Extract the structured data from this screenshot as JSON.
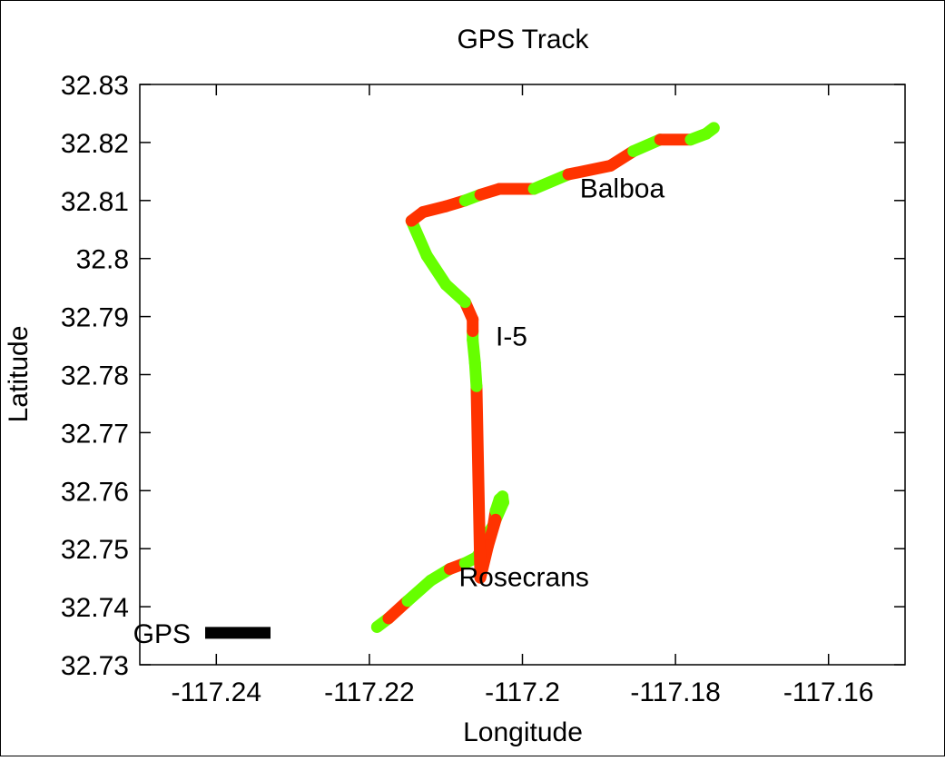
{
  "chart_data": {
    "type": "line",
    "title": "GPS Track",
    "xlabel": "Longitude",
    "ylabel": "Latitude",
    "xlim": [
      -117.25,
      -117.15
    ],
    "ylim": [
      32.73,
      32.83
    ],
    "xticks": [
      -117.24,
      -117.22,
      -117.2,
      -117.18,
      -117.16
    ],
    "xtick_labels": [
      "-117.24",
      "-117.22",
      "-117.2",
      "-117.18",
      "-117.16"
    ],
    "yticks": [
      32.73,
      32.74,
      32.75,
      32.76,
      32.77,
      32.78,
      32.79,
      32.8,
      32.81,
      32.82,
      32.83
    ],
    "ytick_labels": [
      "32.73",
      "32.74",
      "32.75",
      "32.76",
      "32.77",
      "32.78",
      "32.79",
      "32.8",
      "32.81",
      "32.82",
      "32.83"
    ],
    "grid": false,
    "legend": {
      "position": "bottom-left"
    },
    "colors": {
      "slow": "#ff3300",
      "fast": "#66ff00",
      "legend_line": "#000000"
    },
    "series": [
      {
        "name": "GPS",
        "lon": [
          -117.219,
          -117.2175,
          -117.215,
          -117.212,
          -117.2095,
          -117.2075,
          -117.206,
          -117.2055,
          -117.205,
          -117.2038,
          -117.2035,
          -117.203,
          -117.2026,
          -117.2025,
          -117.2035,
          -117.2045,
          -117.2055,
          -117.206,
          -117.2062,
          -117.2065,
          -117.2065,
          -117.2065,
          -117.2075,
          -117.21,
          -117.2125,
          -117.2145,
          -117.213,
          -117.21,
          -117.2075,
          -117.2055,
          -117.203,
          -117.1985,
          -117.194,
          -117.1885,
          -117.1855,
          -117.182,
          -117.178,
          -117.176,
          -117.175,
          -117.1755
        ],
        "lat": [
          32.7365,
          32.738,
          32.741,
          32.7445,
          32.7465,
          32.7475,
          32.7485,
          32.7495,
          32.7515,
          32.754,
          32.7565,
          32.7585,
          32.759,
          32.758,
          32.755,
          32.7505,
          32.745,
          32.778,
          32.782,
          32.786,
          32.7875,
          32.7895,
          32.7925,
          32.7955,
          32.8005,
          32.8065,
          32.808,
          32.809,
          32.81,
          32.811,
          32.812,
          32.812,
          32.8145,
          32.816,
          32.8185,
          32.8205,
          32.8205,
          32.8215,
          32.8225,
          32.822
        ],
        "speed_class": [
          "fast",
          "slow",
          "fast",
          "fast",
          "slow",
          "fast",
          "fast",
          "fast",
          "fast",
          "slow",
          "fast",
          "fast",
          "fast",
          "fast",
          "slow",
          "slow",
          "slow",
          "fast",
          "fast",
          "fast",
          "slow",
          "slow",
          "fast",
          "fast",
          "fast",
          "slow",
          "slow",
          "slow",
          "fast",
          "slow",
          "slow",
          "fast",
          "slow",
          "slow",
          "fast",
          "slow",
          "fast",
          "fast",
          "fast",
          "fast"
        ]
      }
    ],
    "annotations": [
      {
        "text": "Balboa",
        "x": -117.1925,
        "y": 32.8105
      },
      {
        "text": "I-5",
        "x": -117.2035,
        "y": 32.785
      },
      {
        "text": "Rosecrans",
        "x": -117.2083,
        "y": 32.7435
      }
    ]
  }
}
